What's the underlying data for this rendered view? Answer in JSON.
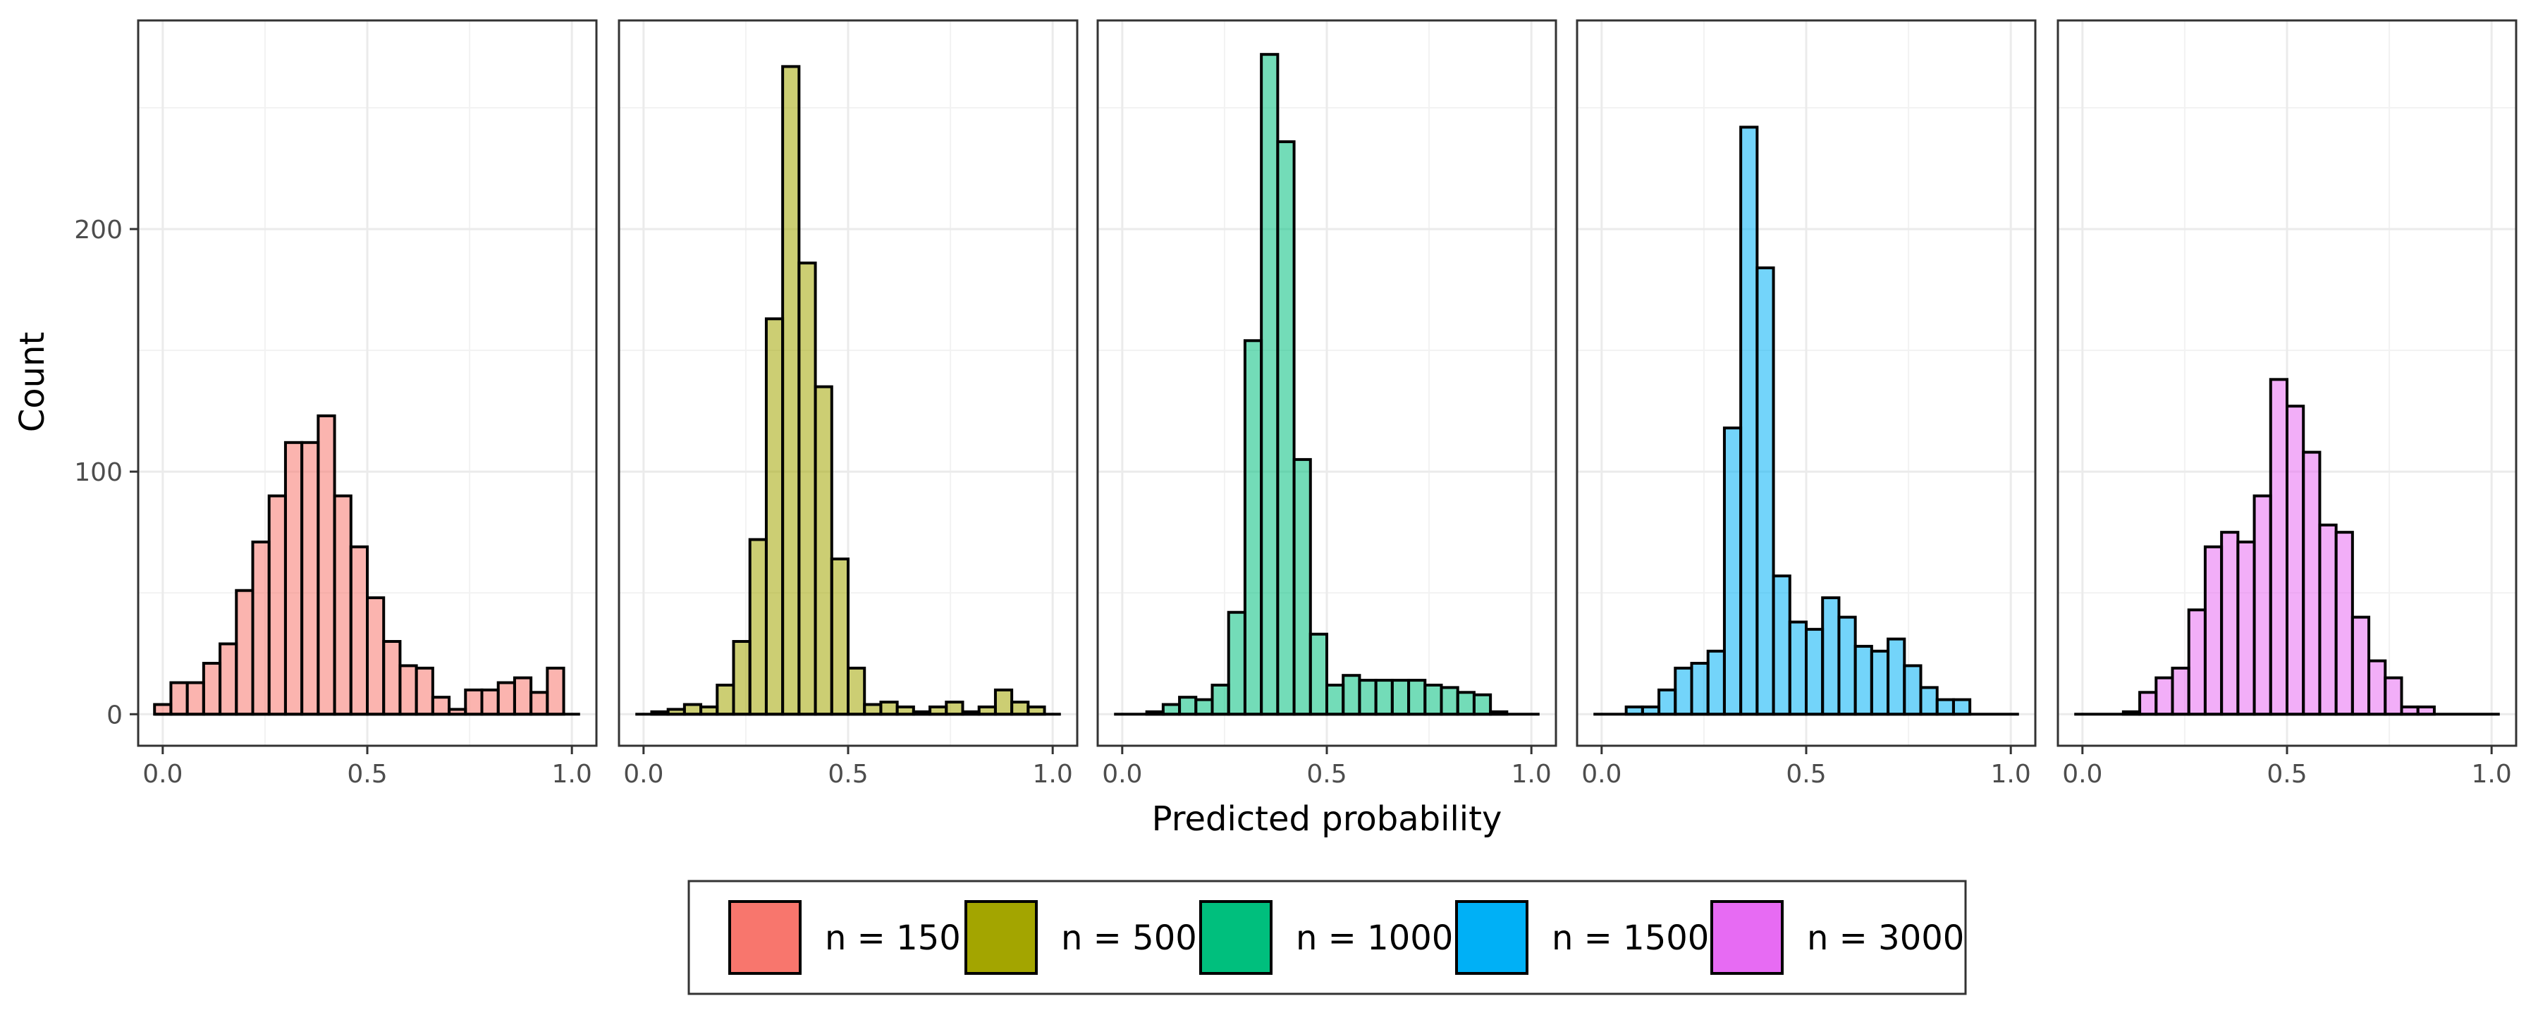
{
  "chart_data": {
    "type": "bar",
    "xlabel": "Predicted probability",
    "ylabel": "Count",
    "x_ticks": [
      "0.0",
      "0.5",
      "1.0"
    ],
    "y_ticks": [
      "0",
      "100",
      "200"
    ],
    "xlim": [
      -0.06,
      1.06
    ],
    "ylim": [
      -13,
      286
    ],
    "x_tick_values": [
      0,
      0.5,
      1
    ],
    "y_tick_values": [
      0,
      100,
      200
    ],
    "bin_width": 0.04,
    "bin_centers": [
      0,
      0.04,
      0.08,
      0.12,
      0.16,
      0.2,
      0.24,
      0.28,
      0.32,
      0.36,
      0.4,
      0.44,
      0.48,
      0.52,
      0.56,
      0.6,
      0.64,
      0.68,
      0.72,
      0.76,
      0.8,
      0.84,
      0.88,
      0.92,
      0.96,
      1.0
    ],
    "legend_position": "bottom",
    "grid": true,
    "series": [
      {
        "name": "n = 150",
        "color": "#F8766D",
        "values": [
          4,
          13,
          13,
          21,
          29,
          51,
          71,
          90,
          112,
          112,
          123,
          90,
          69,
          48,
          30,
          20,
          19,
          7,
          2,
          10,
          10,
          13,
          15,
          9,
          19,
          0
        ]
      },
      {
        "name": "n = 500",
        "color": "#A3A500",
        "values": [
          0,
          1,
          2,
          4,
          3,
          12,
          30,
          72,
          163,
          267,
          186,
          135,
          64,
          19,
          4,
          5,
          3,
          1,
          3,
          5,
          1,
          3,
          10,
          5,
          3,
          0
        ]
      },
      {
        "name": "n = 1000",
        "color": "#00BF7D",
        "values": [
          0,
          0,
          1,
          4,
          7,
          6,
          12,
          42,
          154,
          272,
          236,
          105,
          33,
          12,
          16,
          14,
          14,
          14,
          14,
          12,
          11,
          9,
          8,
          1,
          0,
          0
        ]
      },
      {
        "name": "n = 1500",
        "color": "#00B0F6",
        "values": [
          0,
          0,
          3,
          3,
          10,
          19,
          21,
          26,
          118,
          242,
          184,
          57,
          38,
          35,
          48,
          40,
          28,
          26,
          31,
          20,
          11,
          6,
          6,
          0,
          0,
          0
        ]
      },
      {
        "name": "n = 3000",
        "color": "#E76BF3",
        "values": [
          0,
          0,
          0,
          1,
          9,
          15,
          19,
          43,
          69,
          75,
          71,
          90,
          138,
          127,
          108,
          78,
          75,
          40,
          22,
          15,
          3,
          3,
          0,
          0,
          0,
          0
        ]
      }
    ]
  }
}
